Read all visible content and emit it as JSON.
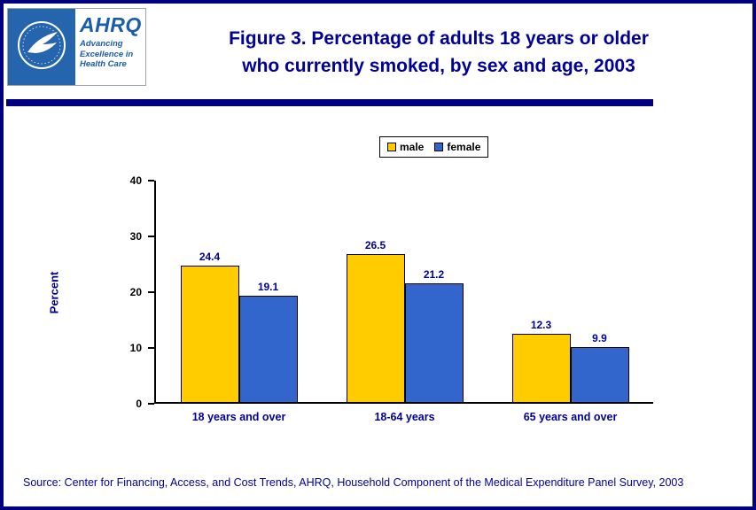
{
  "colors": {
    "navy_text": "#000099",
    "navy_dark": "#000080",
    "male_bar": "#FFCC00",
    "female_bar": "#3366CC",
    "axis": "#000000",
    "hhs_logo_blue": "#2565AE",
    "ahrq_logo_blue": "#1A5DA8"
  },
  "header": {
    "title_line1": "Figure 3. Percentage of adults 18 years or older",
    "title_line2": "who currently smoked, by sex and age, 2003",
    "ahrq": {
      "name": "AHRQ",
      "tagline_line1": "Advancing",
      "tagline_line2": "Excellence in",
      "tagline_line3": "Health Care"
    }
  },
  "chart_data": {
    "type": "bar",
    "title": "Figure 3. Percentage of adults 18 years or older who currently smoked, by sex and age, 2003",
    "categories": [
      "18 years and over",
      "18-64 years",
      "65 years and over"
    ],
    "series": [
      {
        "name": "male",
        "color": "#FFCC00",
        "values": [
          24.4,
          26.5,
          12.3
        ]
      },
      {
        "name": "female",
        "color": "#3366CC",
        "values": [
          19.1,
          21.2,
          9.9
        ]
      }
    ],
    "xlabel": "",
    "ylabel": "Percent",
    "ylim": [
      0,
      40
    ],
    "yticks": [
      0,
      10,
      20,
      30,
      40
    ],
    "legend_position": "top-center",
    "grid": false
  },
  "footer": {
    "source": "Source: Center for Financing, Access, and Cost Trends, AHRQ, Household Component of the Medical Expenditure Panel Survey, 2003"
  }
}
